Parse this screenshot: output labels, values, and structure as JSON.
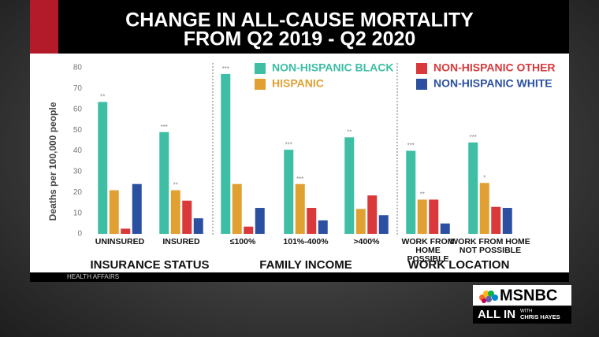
{
  "chart_data": {
    "type": "bar",
    "title": [
      "CHANGE IN ALL-CAUSE MORTALITY",
      "FROM Q2 2019 - Q2 2020"
    ],
    "y_label": "Deaths per 100,000 people",
    "categories": [
      "UNINSURED",
      "INSURED",
      "≤100%",
      "101%-400%",
      ">400%",
      "WORK FROM HOME POSSIBLE",
      "WORK FROM HOME NOT POSSIBLE"
    ],
    "groups": [
      "INSURANCE STATUS",
      "FAMILY INCOME",
      "WORK LOCATION"
    ],
    "series": [
      {
        "name": "NON-HISPANIC BLACK",
        "color": "#3dbea5",
        "values": [
          63.5,
          49,
          77,
          40.5,
          46.5,
          40,
          44
        ],
        "significance": [
          "**",
          "***",
          "***",
          "***",
          "**",
          "***",
          "***"
        ]
      },
      {
        "name": "HISPANIC",
        "color": "#e0a032",
        "values": [
          21,
          21,
          24,
          24,
          12,
          16.5,
          24.5
        ],
        "significance": [
          null,
          "**",
          null,
          "***",
          null,
          "**",
          "*"
        ]
      },
      {
        "name": "NON-HISPANIC OTHER",
        "color": "#d9393b",
        "values": [
          2.5,
          16,
          3.5,
          12.5,
          18.5,
          16.5,
          13
        ]
      },
      {
        "name": "NON-HISPANIC WHITE",
        "color": "#2b50a1",
        "values": [
          24,
          7.5,
          12.5,
          6.5,
          9,
          5,
          12.5
        ]
      }
    ],
    "ylim": [
      0,
      80
    ],
    "yticks": [
      0,
      10,
      20,
      30,
      40,
      50,
      60,
      70,
      80
    ],
    "source": "HEALTH AFFAIRS"
  },
  "branding": {
    "network": "MSNBC",
    "show": "ALL IN",
    "with": "WITH",
    "host": "CHRIS HAYES"
  }
}
